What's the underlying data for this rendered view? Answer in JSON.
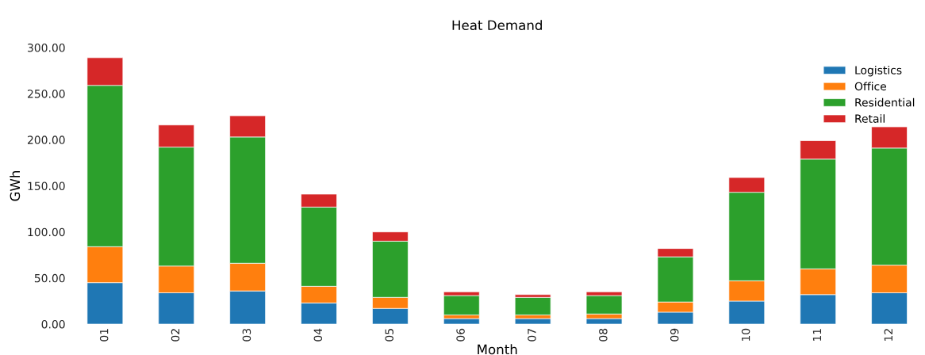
{
  "chart_data": {
    "type": "bar",
    "stacked": true,
    "title": "Heat Demand",
    "xlabel": "Month",
    "ylabel": "GWh",
    "categories": [
      "01",
      "02",
      "03",
      "04",
      "05",
      "06",
      "07",
      "08",
      "09",
      "10",
      "11",
      "12"
    ],
    "series": [
      {
        "name": "Logistics",
        "color": "#1f77b4",
        "values": [
          45,
          34,
          36,
          23,
          17,
          6,
          6,
          6,
          13,
          25,
          32,
          34
        ]
      },
      {
        "name": "Office",
        "color": "#ff7f0e",
        "values": [
          39,
          29,
          30,
          18,
          12,
          4,
          4,
          5,
          11,
          22,
          28,
          30
        ]
      },
      {
        "name": "Residential",
        "color": "#2ca02c",
        "values": [
          175,
          129,
          137,
          86,
          61,
          21,
          19,
          20,
          49,
          96,
          119,
          127
        ]
      },
      {
        "name": "Retail",
        "color": "#d62728",
        "values": [
          30,
          24,
          23,
          14,
          10,
          4,
          3,
          4,
          9,
          16,
          20,
          23
        ]
      }
    ],
    "ylim": [
      0,
      300
    ],
    "yticks": [
      {
        "value": 0,
        "label": "0.00"
      },
      {
        "value": 50,
        "label": "50.00"
      },
      {
        "value": 100,
        "label": "100.00"
      },
      {
        "value": 150,
        "label": "150.00"
      },
      {
        "value": 200,
        "label": "200.00"
      },
      {
        "value": 250,
        "label": "250.00"
      },
      {
        "value": 300,
        "label": "300.00"
      }
    ],
    "legend": "top right",
    "grid": false
  }
}
